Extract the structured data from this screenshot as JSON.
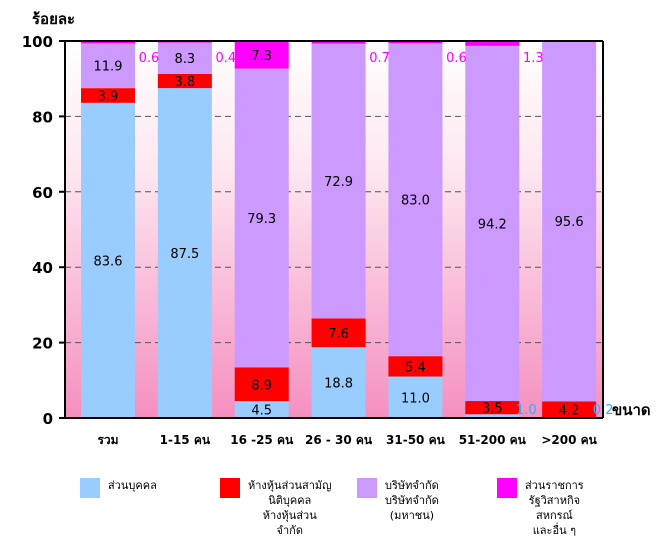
{
  "chart_data": {
    "type": "bar",
    "stacked": true,
    "ylabel": "ร้อยละ",
    "xlabel": "ขนาด",
    "ylim": [
      0,
      100
    ],
    "yticks": [
      0,
      20,
      40,
      60,
      80,
      100
    ],
    "grid": "dashed horizontal",
    "categories": [
      "รวม",
      "1-15 คน",
      "16 -25 คน",
      "26 - 30 คน",
      "31-50 คน",
      "51-200 คน",
      ">200 คน"
    ],
    "series": [
      {
        "name": "ส่วนบุคคล",
        "color": "#99ccff",
        "values": [
          83.6,
          87.5,
          4.5,
          18.8,
          11.0,
          1.0,
          0.2
        ],
        "labels": [
          "83.6",
          "87.5",
          "4.5",
          "18.8",
          "11.0",
          "1.0",
          "0.2"
        ]
      },
      {
        "name": "ห้างหุ้นส่วนสามัญ\nนิติบุคคล\nห้างหุ้นส่วน\nจำกัด",
        "color": "#ff0000",
        "values": [
          3.9,
          3.8,
          8.9,
          7.6,
          5.4,
          3.5,
          4.2
        ],
        "labels": [
          "3.9",
          "3.8",
          "8.9",
          "7.6",
          "5.4",
          "3.5",
          "4.2"
        ]
      },
      {
        "name": "บริษัทจำกัด\nบริษัทจำกัด\n(มหาชน)",
        "color": "#cc99ff",
        "values": [
          11.9,
          8.3,
          79.3,
          72.9,
          83.0,
          94.2,
          95.6
        ],
        "labels": [
          "11.9",
          "8.3",
          "79.3",
          "72.9",
          "83.0",
          "94.2",
          "95.6"
        ]
      },
      {
        "name": "ส่วนราชการ\nรัฐวิสาหกิจ\nสหกรณ์\nและอื่น ๆ",
        "color": "#ff00ff",
        "values": [
          0.6,
          0.4,
          7.3,
          0.7,
          0.6,
          1.3,
          0.0
        ],
        "labels": [
          "0.6",
          "0.4",
          "7.3",
          "0.7",
          "0.6",
          "1.3",
          ""
        ]
      }
    ]
  }
}
